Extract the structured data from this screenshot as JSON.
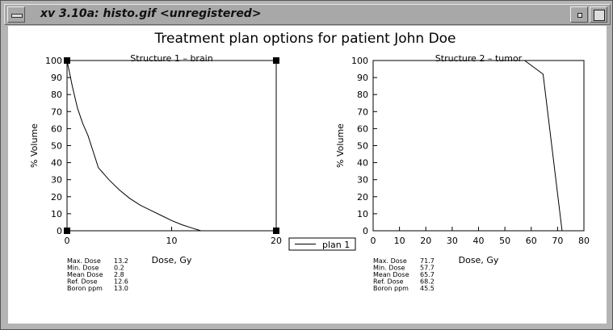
{
  "window": {
    "title": "xv 3.10a: histo.gif <unregistered>",
    "icons": [
      "window-menu-icon",
      "minimize-icon",
      "maximize-icon"
    ]
  },
  "figure": {
    "title": "Treatment plan options for patient  John Doe",
    "legend": {
      "label": "plan 1"
    }
  },
  "chart_data": [
    {
      "type": "line",
      "title": "Structure 1 – brain",
      "xlabel": "Dose, Gy",
      "ylabel": "% Volume",
      "xlim": [
        0,
        20
      ],
      "ylim": [
        0,
        100
      ],
      "xticks": [
        "0",
        "10",
        "20"
      ],
      "yticks": [
        "0",
        "10",
        "20",
        "30",
        "40",
        "50",
        "60",
        "70",
        "80",
        "90",
        "100"
      ],
      "series": [
        {
          "name": "plan 1",
          "x": [
            0,
            0.5,
            1,
            1.5,
            2,
            3,
            4,
            5,
            6,
            7,
            8,
            9,
            10,
            11,
            12,
            12.8
          ],
          "y": [
            100,
            85,
            72,
            63,
            56,
            37,
            30,
            24,
            19,
            15,
            12,
            9,
            6,
            3.5,
            1.5,
            0
          ]
        }
      ],
      "stats": [
        {
          "label": "Max. Dose",
          "value": "13.2"
        },
        {
          "label": "Min. Dose",
          "value": "0.2"
        },
        {
          "label": "Mean Dose",
          "value": "2.8"
        },
        {
          "label": "Ref. Dose",
          "value": "12.6"
        },
        {
          "label": "Boron ppm",
          "value": "13.0"
        }
      ]
    },
    {
      "type": "line",
      "title": "Structure 2 – tumor",
      "xlabel": "Dose, Gy",
      "ylabel": "% Volume",
      "xlim": [
        0,
        80
      ],
      "ylim": [
        0,
        100
      ],
      "xticks": [
        "0",
        "10",
        "20",
        "30",
        "40",
        "50",
        "60",
        "70",
        "80"
      ],
      "yticks": [
        "0",
        "10",
        "20",
        "30",
        "40",
        "50",
        "60",
        "70",
        "80",
        "90",
        "100"
      ],
      "series": [
        {
          "name": "plan 1",
          "x": [
            57.5,
            64.5,
            71.7
          ],
          "y": [
            100,
            92,
            0
          ]
        }
      ],
      "stats": [
        {
          "label": "Max. Dose",
          "value": "71.7"
        },
        {
          "label": "Min. Dose",
          "value": "57.7"
        },
        {
          "label": "Mean Dose",
          "value": "65.7"
        },
        {
          "label": "Ref. Dose",
          "value": "68.2"
        },
        {
          "label": "Boron ppm",
          "value": "45.5"
        }
      ]
    }
  ]
}
